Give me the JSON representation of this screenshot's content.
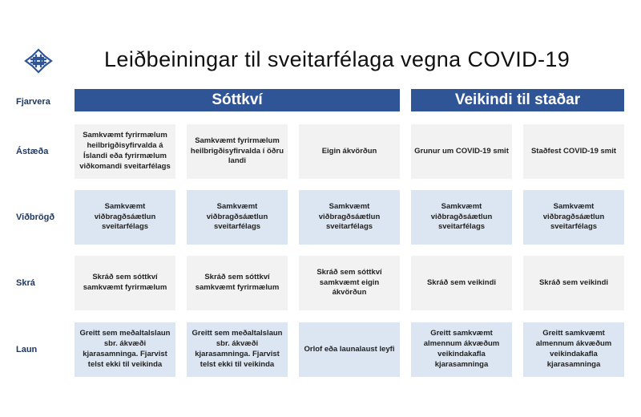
{
  "title": "Leiðbeiningar til sveitarfélaga vegna COVID-19",
  "colors": {
    "header": "#2f5597",
    "row_gray": "#f2f2f2",
    "row_blue": "#dce6f2",
    "label": "#1f3864"
  },
  "rows": [
    "Fjarvera",
    "Ástæða",
    "Viðbrögð",
    "Skrá",
    "Laun"
  ],
  "headers": [
    "Sóttkví",
    "Veikindi til staðar"
  ],
  "cells": [
    [
      "Samkvæmt fyrirmælum heilbrigðisyfirvalda á Íslandi eða fyrirmælum viðkomandi sveitarfélags",
      "Samkvæmt fyrirmælum heilbrigðisyfirvalda í öðru landi",
      "Eigin ákvörðun",
      "Grunur um COVID-19 smit",
      "Staðfest COVID-19 smit"
    ],
    [
      "Samkvæmt viðbragðsáætlun sveitarfélags",
      "Samkvæmt viðbragðsáætlun sveitarfélags",
      "Samkvæmt viðbragðsáætlun sveitarfélags",
      "Samkvæmt viðbragðsáætlun sveitarfélags",
      "Samkvæmt viðbragðsáætlun sveitarfélags"
    ],
    [
      "Skráð sem sóttkví samkvæmt fyrirmælum",
      "Skráð sem sóttkví samkvæmt fyrirmælum",
      "Skráð sem sóttkví samkvæmt eigin ákvörðun",
      "Skráð sem veikindi",
      "Skráð sem veikindi"
    ],
    [
      "Greitt sem meðaltalslaun sbr. ákvæði kjarasamninga. Fjarvist telst ekki til veikinda",
      "Greitt sem meðaltalslaun sbr. ákvæði kjarasamninga. Fjarvist telst ekki til veikinda",
      "Orlof eða launalaust leyfi",
      "Greitt samkvæmt almennum ákvæðum veikindakafla kjarasamninga",
      "Greitt samkvæmt almennum ákvæðum veikindakafla kjarasamninga"
    ]
  ]
}
